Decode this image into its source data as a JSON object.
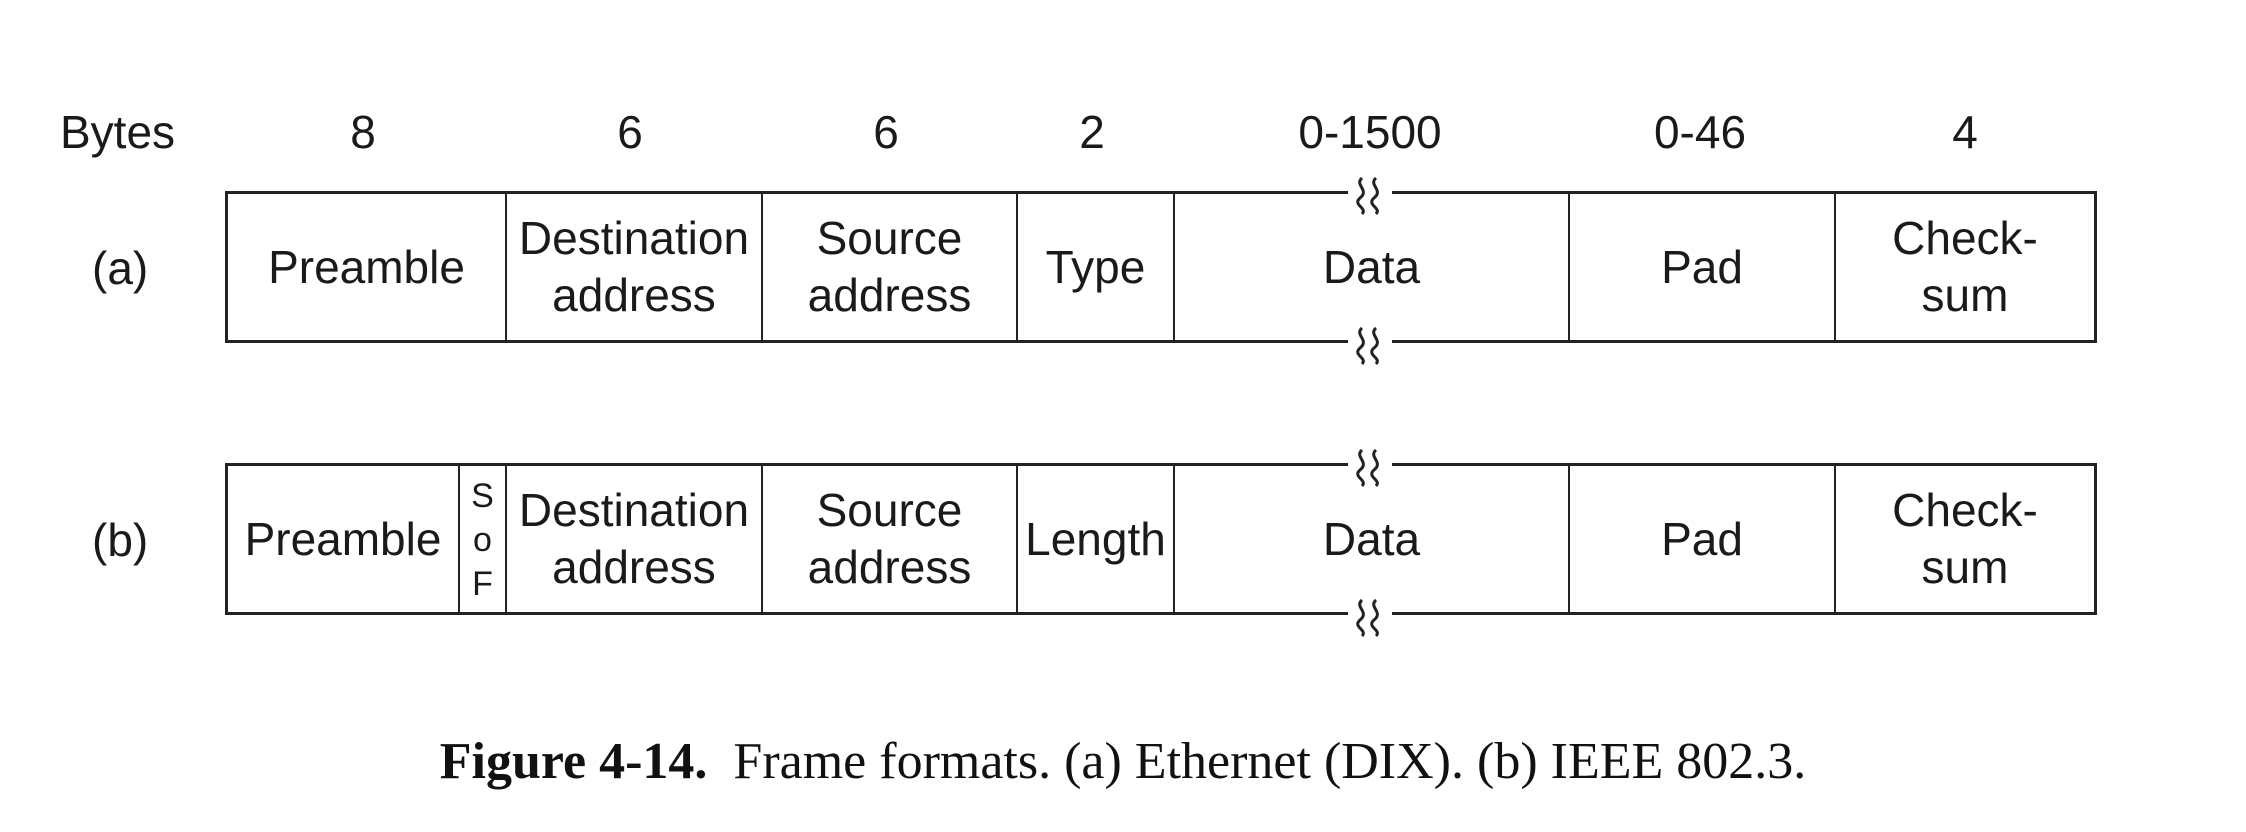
{
  "header": {
    "bytes_label": "Bytes",
    "counts": [
      "8",
      "6",
      "6",
      "2",
      "0-1500",
      "0-46",
      "4"
    ]
  },
  "frame_a": {
    "label": "(a)",
    "fields": {
      "preamble": "Preamble",
      "destination_1": "Destination",
      "destination_2": "address",
      "source_1": "Source",
      "source_2": "address",
      "type": "Type",
      "data": "Data",
      "pad": "Pad",
      "checksum_1": "Check-",
      "checksum_2": "sum"
    }
  },
  "frame_b": {
    "label": "(b)",
    "fields": {
      "preamble": "Preamble",
      "sof_1": "S",
      "sof_2": "o",
      "sof_3": "F",
      "destination_1": "Destination",
      "destination_2": "address",
      "source_1": "Source",
      "source_2": "address",
      "length": "Length",
      "data": "Data",
      "pad": "Pad",
      "checksum_1": "Check-",
      "checksum_2": "sum"
    }
  },
  "caption": {
    "number": "Figure 4-14.",
    "text": "Frame formats. (a) Ethernet (DIX). (b) IEEE 802.3."
  }
}
